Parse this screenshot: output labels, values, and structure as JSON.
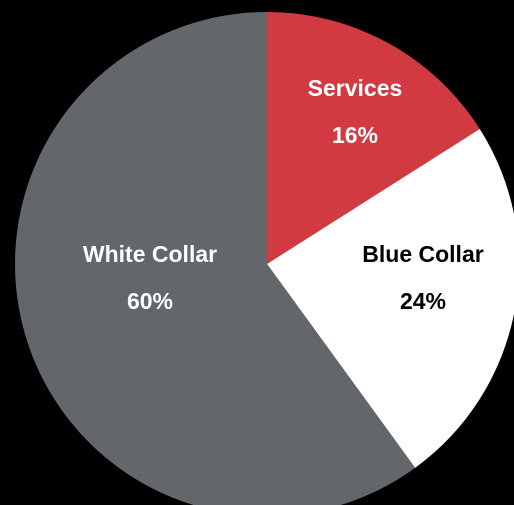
{
  "chart_data": {
    "type": "pie",
    "slices": [
      {
        "label": "Services",
        "value": 16,
        "value_label": "16%",
        "color": "#d23a42",
        "text_color": "#ffffff"
      },
      {
        "label": "Blue Collar",
        "value": 24,
        "value_label": "24%",
        "color": "#ffffff",
        "text_color": "#000000"
      },
      {
        "label": "White Collar",
        "value": 60,
        "value_label": "60%",
        "color": "#63666a",
        "text_color": "#ffffff"
      }
    ],
    "start": "12 o'clock",
    "direction": "clockwise",
    "background": "#000000",
    "legend": "none"
  }
}
